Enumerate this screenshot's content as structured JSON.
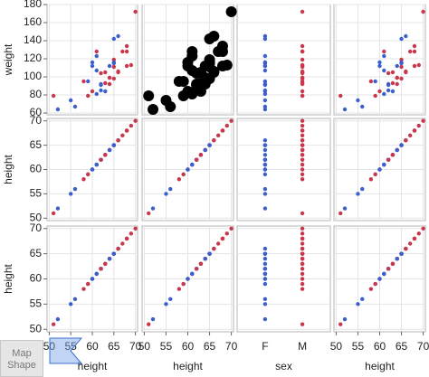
{
  "chart_data": {
    "type": "scatter_matrix",
    "rows": [
      "weight",
      "height",
      "height"
    ],
    "columns": [
      "height",
      "height",
      "sex",
      "height"
    ],
    "variables": {
      "height": [
        59,
        61,
        55,
        66,
        52,
        60,
        61,
        51,
        60,
        61,
        56,
        65,
        63,
        58,
        59,
        61,
        62,
        65,
        63,
        62,
        63,
        64,
        65,
        64,
        68,
        64,
        69,
        62,
        64,
        67,
        65,
        66,
        62,
        66,
        65,
        60,
        68,
        65,
        68,
        70
      ],
      "weight": [
        95,
        123,
        74,
        145,
        64,
        84,
        128,
        79,
        112,
        107,
        67,
        98,
        105,
        95,
        79,
        81,
        91,
        142,
        84,
        85,
        93,
        99,
        119,
        92,
        112,
        99,
        113,
        92,
        112,
        128,
        111,
        105,
        104,
        106,
        115,
        116,
        128,
        116,
        134,
        172
      ],
      "sex": [
        "F",
        "F",
        "F",
        "F",
        "F",
        "M",
        "M",
        "M",
        "F",
        "F",
        "F",
        "M",
        "M",
        "M",
        "M",
        "F",
        "F",
        "F",
        "F",
        "F",
        "M",
        "M",
        "M",
        "M",
        "M",
        "M",
        "M",
        "F",
        "F",
        "M",
        "M",
        "M",
        "M",
        "M",
        "F",
        "F",
        "M",
        "F",
        "M",
        "M"
      ]
    },
    "sex_levels": [
      "F",
      "M"
    ],
    "sex_colors": [
      "#3b5fcc",
      "#c8374b"
    ],
    "axes": {
      "height": {
        "lim": [
          49.5,
          70.5
        ],
        "ticks": [
          50,
          55,
          60,
          65,
          70
        ]
      },
      "weight": {
        "lim": [
          58,
          180
        ],
        "ticks": [
          60,
          80,
          100,
          120,
          140,
          160,
          180
        ]
      }
    },
    "highlight_panel": [
      0,
      1
    ],
    "highlight_color": "#000000",
    "grid": true,
    "button_label": "Map Shape"
  }
}
